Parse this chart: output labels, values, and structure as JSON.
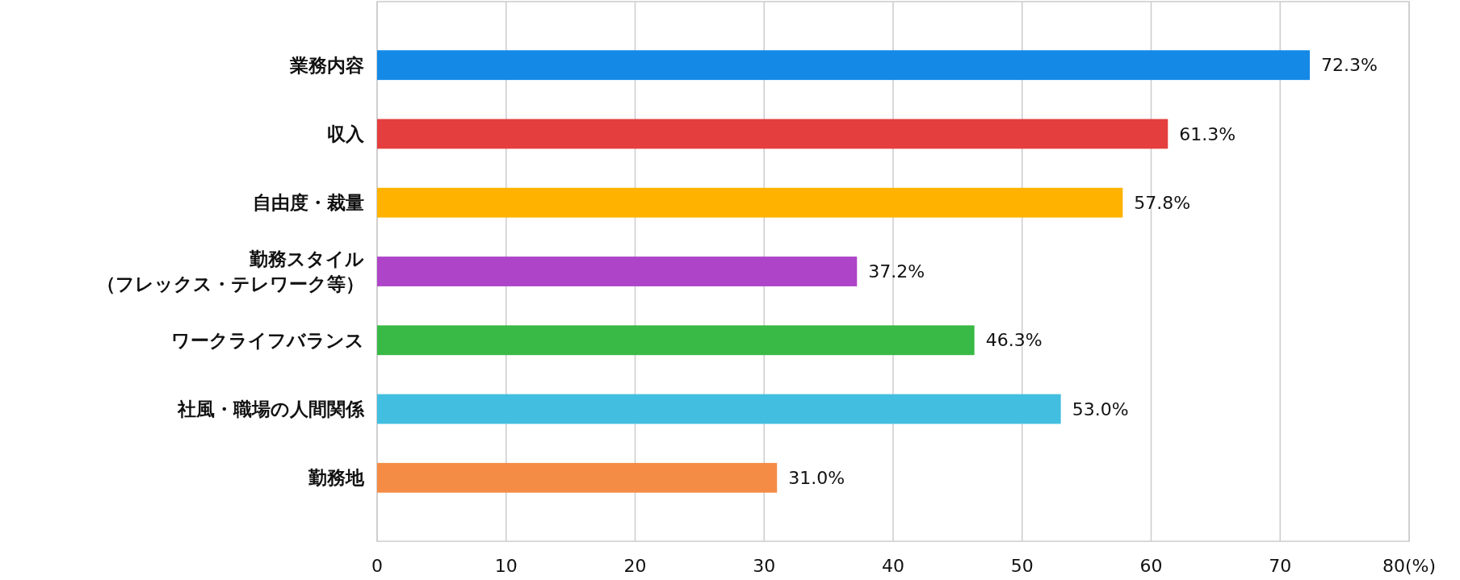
{
  "chart_data": {
    "type": "bar",
    "orientation": "horizontal",
    "categories": [
      "業務内容",
      "収入",
      "自由度・裁量",
      "勤務スタイル（フレックス・テレワーク等）",
      "ワークライフバランス",
      "社風・職場の人間関係",
      "勤務地"
    ],
    "values": [
      72.3,
      61.3,
      57.8,
      37.2,
      46.3,
      53.0,
      31.0
    ],
    "colors": [
      "#1589e6",
      "#e53e3e",
      "#ffb300",
      "#ae45c8",
      "#39b945",
      "#42bee0",
      "#f58c45"
    ],
    "value_labels": [
      "72.3%",
      "61.3%",
      "57.8%",
      "37.2%",
      "46.3%",
      "53.0%",
      "31.0%"
    ],
    "xlim": [
      0,
      80
    ],
    "xticks": [
      0,
      10,
      20,
      30,
      40,
      50,
      60,
      70,
      {
        "value": 80,
        "label": "80(%)"
      }
    ],
    "grid": "x"
  }
}
